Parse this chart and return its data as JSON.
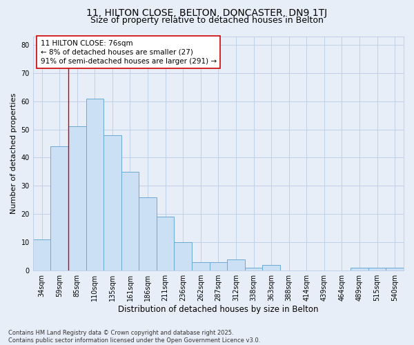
{
  "title1": "11, HILTON CLOSE, BELTON, DONCASTER, DN9 1TJ",
  "title2": "Size of property relative to detached houses in Belton",
  "xlabel": "Distribution of detached houses by size in Belton",
  "ylabel": "Number of detached properties",
  "categories": [
    "34sqm",
    "59sqm",
    "85sqm",
    "110sqm",
    "135sqm",
    "161sqm",
    "186sqm",
    "211sqm",
    "236sqm",
    "262sqm",
    "287sqm",
    "312sqm",
    "338sqm",
    "363sqm",
    "388sqm",
    "414sqm",
    "439sqm",
    "464sqm",
    "489sqm",
    "515sqm",
    "540sqm"
  ],
  "values": [
    11,
    44,
    51,
    61,
    48,
    35,
    26,
    19,
    10,
    3,
    3,
    4,
    1,
    2,
    0,
    0,
    0,
    0,
    1,
    1,
    1
  ],
  "bar_color": "#cce0f5",
  "bar_edge_color": "#6aaad4",
  "grid_color": "#c0cfe8",
  "background_color": "#e8eef8",
  "vline_x": 1.5,
  "vline_color": "#cc0000",
  "annotation_line1": "11 HILTON CLOSE: 76sqm",
  "annotation_line2": "← 8% of detached houses are smaller (27)",
  "annotation_line3": "91% of semi-detached houses are larger (291) →",
  "annotation_box_color": "#ffffff",
  "annotation_box_edge_color": "#cc0000",
  "ylim": [
    0,
    83
  ],
  "yticks": [
    0,
    10,
    20,
    30,
    40,
    50,
    60,
    70,
    80
  ],
  "footer": "Contains HM Land Registry data © Crown copyright and database right 2025.\nContains public sector information licensed under the Open Government Licence v3.0.",
  "title1_fontsize": 10,
  "title2_fontsize": 9,
  "tick_fontsize": 7,
  "ylabel_fontsize": 8,
  "xlabel_fontsize": 8.5,
  "annotation_fontsize": 7.5,
  "footer_fontsize": 6
}
